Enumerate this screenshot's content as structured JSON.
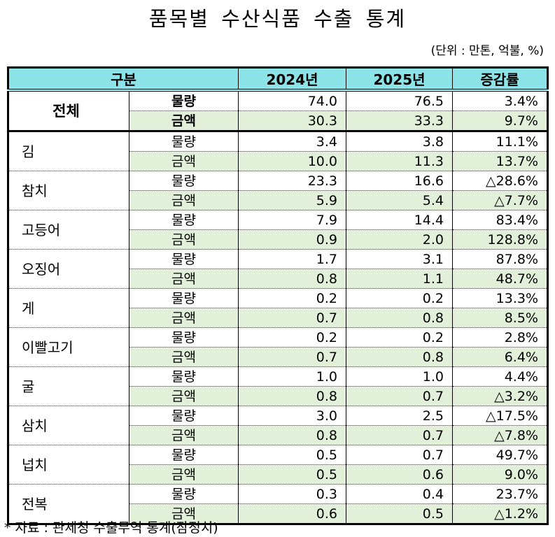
{
  "title": "품목별 수산식품 수출 통계",
  "unit_note": "(단위 : 만톤, 억불, %)",
  "table": {
    "headers": [
      "구분",
      "2024년",
      "2025년",
      "증감률"
    ],
    "colors": {
      "header_bg": "#8ce3e8",
      "amount_row_bg": "#e2f0d9"
    },
    "groups": [
      {
        "item": "전체",
        "rows": [
          {
            "kind": "물량",
            "y2024": "74.0",
            "y2025": "76.5",
            "change": "3.4%"
          },
          {
            "kind": "금액",
            "y2024": "30.3",
            "y2025": "33.3",
            "change": "9.7%"
          }
        ]
      },
      {
        "item": "김",
        "rows": [
          {
            "kind": "물량",
            "y2024": "3.4",
            "y2025": "3.8",
            "change": "11.1%"
          },
          {
            "kind": "금액",
            "y2024": "10.0",
            "y2025": "11.3",
            "change": "13.7%"
          }
        ]
      },
      {
        "item": "참치",
        "rows": [
          {
            "kind": "물량",
            "y2024": "23.3",
            "y2025": "16.6",
            "change": "△28.6%"
          },
          {
            "kind": "금액",
            "y2024": "5.9",
            "y2025": "5.4",
            "change": "△7.7%"
          }
        ]
      },
      {
        "item": "고등어",
        "rows": [
          {
            "kind": "물량",
            "y2024": "7.9",
            "y2025": "14.4",
            "change": "83.4%"
          },
          {
            "kind": "금액",
            "y2024": "0.9",
            "y2025": "2.0",
            "change": "128.8%"
          }
        ]
      },
      {
        "item": "오징어",
        "rows": [
          {
            "kind": "물량",
            "y2024": "1.7",
            "y2025": "3.1",
            "change": "87.8%"
          },
          {
            "kind": "금액",
            "y2024": "0.8",
            "y2025": "1.1",
            "change": "48.7%"
          }
        ]
      },
      {
        "item": "게",
        "rows": [
          {
            "kind": "물량",
            "y2024": "0.2",
            "y2025": "0.2",
            "change": "13.3%"
          },
          {
            "kind": "금액",
            "y2024": "0.7",
            "y2025": "0.8",
            "change": "8.5%"
          }
        ]
      },
      {
        "item": "이빨고기",
        "rows": [
          {
            "kind": "물량",
            "y2024": "0.2",
            "y2025": "0.2",
            "change": "2.8%"
          },
          {
            "kind": "금액",
            "y2024": "0.7",
            "y2025": "0.8",
            "change": "6.4%"
          }
        ]
      },
      {
        "item": "굴",
        "rows": [
          {
            "kind": "물량",
            "y2024": "1.0",
            "y2025": "1.0",
            "change": "4.4%"
          },
          {
            "kind": "금액",
            "y2024": "0.8",
            "y2025": "0.7",
            "change": "△3.2%"
          }
        ]
      },
      {
        "item": "삼치",
        "rows": [
          {
            "kind": "물량",
            "y2024": "3.0",
            "y2025": "2.5",
            "change": "△17.5%"
          },
          {
            "kind": "금액",
            "y2024": "0.8",
            "y2025": "0.7",
            "change": "△7.8%"
          }
        ]
      },
      {
        "item": "넙치",
        "rows": [
          {
            "kind": "물량",
            "y2024": "0.5",
            "y2025": "0.7",
            "change": "49.7%"
          },
          {
            "kind": "금액",
            "y2024": "0.5",
            "y2025": "0.6",
            "change": "9.0%"
          }
        ]
      },
      {
        "item": "전복",
        "rows": [
          {
            "kind": "물량",
            "y2024": "0.3",
            "y2025": "0.4",
            "change": "23.7%"
          },
          {
            "kind": "금액",
            "y2024": "0.6",
            "y2025": "0.5",
            "change": "△1.2%"
          }
        ]
      }
    ]
  },
  "footnote": "* 자료 : 관세청 수출무역 통계(잠정치)"
}
